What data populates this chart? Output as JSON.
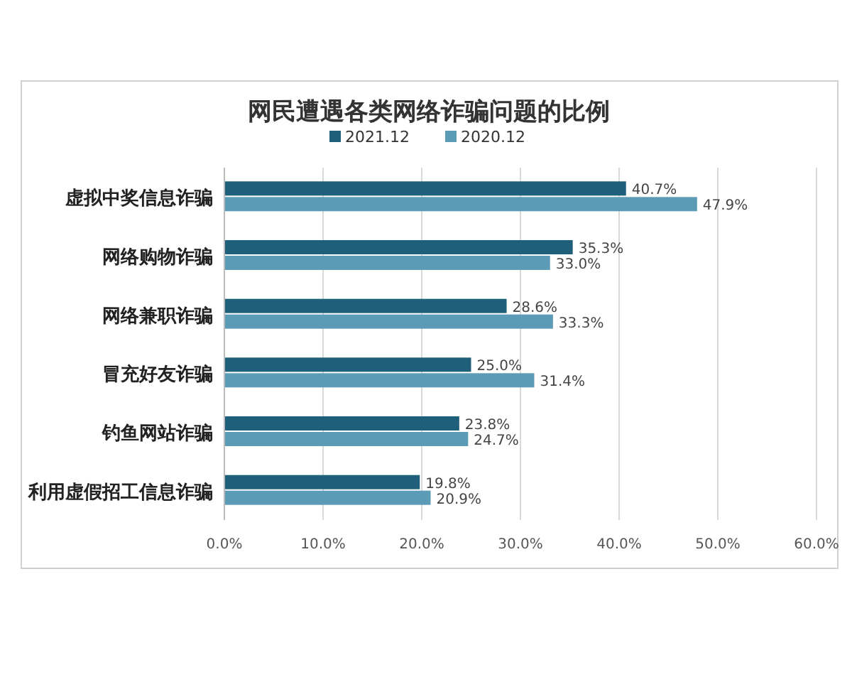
{
  "chart_data": {
    "type": "bar",
    "orientation": "horizontal",
    "title": "网民遭遇各类网络诈骗问题的比例",
    "categories": [
      "虚拟中奖信息诈骗",
      "网络购物诈骗",
      "网络兼职诈骗",
      "冒充好友诈骗",
      "钓鱼网站诈骗",
      "利用虚假招工信息诈骗"
    ],
    "series": [
      {
        "name": "2021.12",
        "color": "#1f5f7a",
        "values": [
          40.7,
          35.3,
          28.6,
          25.0,
          23.8,
          19.8
        ],
        "value_labels": [
          "40.7%",
          "35.3%",
          "28.6%",
          "25.0%",
          "23.8%",
          "19.8%"
        ]
      },
      {
        "name": "2020.12",
        "color": "#5b9bb5",
        "values": [
          47.9,
          33.0,
          33.3,
          31.4,
          24.7,
          20.9
        ],
        "value_labels": [
          "47.9%",
          "33.0%",
          "33.3%",
          "31.4%",
          "24.7%",
          "20.9%"
        ]
      }
    ],
    "xlim": [
      0,
      60
    ],
    "xticks": [
      {
        "value": 0,
        "label": "0.0%"
      },
      {
        "value": 10,
        "label": "10.0%"
      },
      {
        "value": 20,
        "label": "20.0%"
      },
      {
        "value": 30,
        "label": "30.0%"
      },
      {
        "value": 40,
        "label": "40.0%"
      },
      {
        "value": 50,
        "label": "50.0%"
      },
      {
        "value": 60,
        "label": "60.0%"
      }
    ],
    "grid": "x",
    "legend": "top"
  }
}
